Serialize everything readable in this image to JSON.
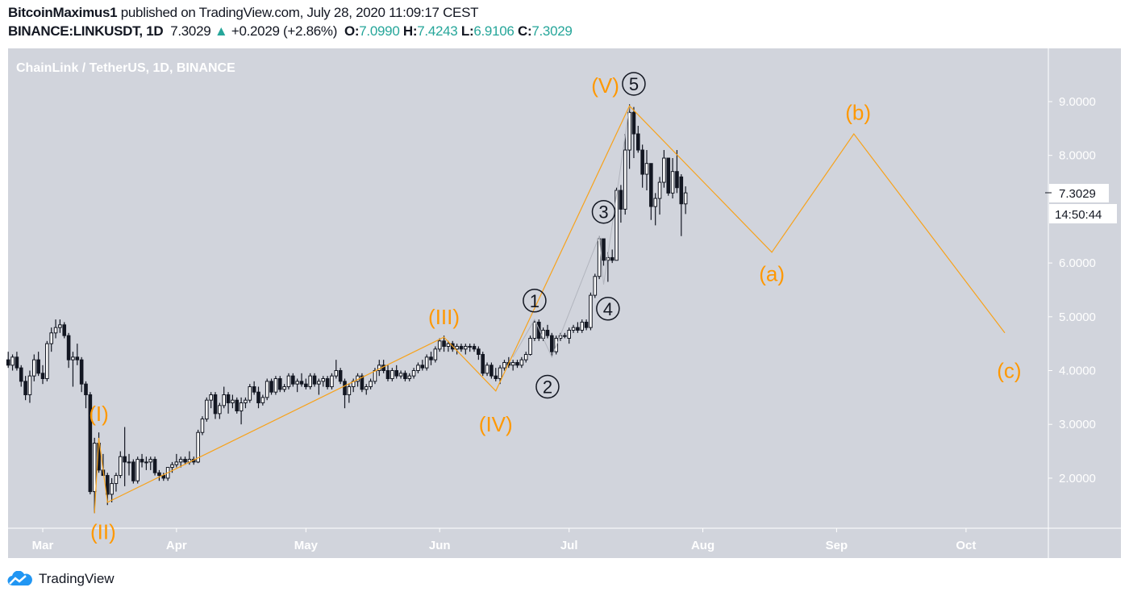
{
  "header": {
    "author": "BitcoinMaximus1",
    "published": "published on TradingView.com, July 28, 2020 11:09:17 CEST",
    "symbol": "BINANCE:LINKUSDT, 1D",
    "last": "7.3029",
    "change": "+0.2029 (+2.86%)",
    "o_label": "O:",
    "o": "7.0990",
    "h_label": "H:",
    "h": "7.4243",
    "l_label": "L:",
    "l": "6.9106",
    "c_label": "C:",
    "c": "7.3029"
  },
  "footer": {
    "brand": "TradingView",
    "icon": "tradingview-cloud-icon"
  },
  "colors": {
    "background": "#d1d4dc",
    "up_body": "#ffffff",
    "down_body": "#131722",
    "wick": "#131722",
    "wave": "#f7a21b",
    "wave_label": "#ff9800",
    "subwave": "#b2b5be",
    "change_up": "#26a69a"
  },
  "chart_data": {
    "type": "candlestick",
    "title": "ChainLink / TetherUS, 1D, BINANCE",
    "x_start": "2020-02-22",
    "interval": "1D",
    "ohlc": [
      [
        4.2,
        4.35,
        4.05,
        4.1
      ],
      [
        4.1,
        4.3,
        4.0,
        4.25
      ],
      [
        4.25,
        4.35,
        4.0,
        4.05
      ],
      [
        4.05,
        4.1,
        3.7,
        3.8
      ],
      [
        3.8,
        3.9,
        3.45,
        3.55
      ],
      [
        3.55,
        4.0,
        3.4,
        3.9
      ],
      [
        3.9,
        4.3,
        3.8,
        4.2
      ],
      [
        4.2,
        4.35,
        3.9,
        3.95
      ],
      [
        3.95,
        4.1,
        3.75,
        3.85
      ],
      [
        3.85,
        4.55,
        3.8,
        4.5
      ],
      [
        4.5,
        4.8,
        4.35,
        4.7
      ],
      [
        4.7,
        4.95,
        4.6,
        4.8
      ],
      [
        4.8,
        4.95,
        4.7,
        4.85
      ],
      [
        4.85,
        4.9,
        4.6,
        4.65
      ],
      [
        4.65,
        4.7,
        4.05,
        4.2
      ],
      [
        4.2,
        4.35,
        3.7,
        4.25
      ],
      [
        4.25,
        4.5,
        4.1,
        4.2
      ],
      [
        4.2,
        4.25,
        3.6,
        3.75
      ],
      [
        3.75,
        3.8,
        3.3,
        3.55
      ],
      [
        3.55,
        3.6,
        1.7,
        1.75
      ],
      [
        1.75,
        2.75,
        1.35,
        2.65
      ],
      [
        2.65,
        2.85,
        2.1,
        2.15
      ],
      [
        2.15,
        2.45,
        2.05,
        2.05
      ],
      [
        2.05,
        2.1,
        1.5,
        1.7
      ],
      [
        1.7,
        2.0,
        1.55,
        1.9
      ],
      [
        1.9,
        2.1,
        1.75,
        2.05
      ],
      [
        2.05,
        2.5,
        2.0,
        2.4
      ],
      [
        2.4,
        2.95,
        1.85,
        2.3
      ],
      [
        2.3,
        2.45,
        2.05,
        2.3
      ],
      [
        2.3,
        2.35,
        1.9,
        1.95
      ],
      [
        1.95,
        2.4,
        1.9,
        2.35
      ],
      [
        2.35,
        2.45,
        2.2,
        2.3
      ],
      [
        2.3,
        2.4,
        2.15,
        2.3
      ],
      [
        2.3,
        2.4,
        2.15,
        2.35
      ],
      [
        2.35,
        2.4,
        2.05,
        2.1
      ],
      [
        2.1,
        2.15,
        1.95,
        2.05
      ],
      [
        2.05,
        2.1,
        1.95,
        2.0
      ],
      [
        2.0,
        2.2,
        1.95,
        2.2
      ],
      [
        2.2,
        2.3,
        2.1,
        2.25
      ],
      [
        2.25,
        2.45,
        2.2,
        2.3
      ],
      [
        2.3,
        2.4,
        2.2,
        2.35
      ],
      [
        2.35,
        2.4,
        2.25,
        2.3
      ],
      [
        2.3,
        2.5,
        2.25,
        2.35
      ],
      [
        2.35,
        2.4,
        2.25,
        2.3
      ],
      [
        2.3,
        2.9,
        2.28,
        2.85
      ],
      [
        2.85,
        3.15,
        2.8,
        3.1
      ],
      [
        3.1,
        3.5,
        3.05,
        3.45
      ],
      [
        3.45,
        3.6,
        3.3,
        3.55
      ],
      [
        3.55,
        3.6,
        3.1,
        3.2
      ],
      [
        3.2,
        3.4,
        3.1,
        3.35
      ],
      [
        3.35,
        3.7,
        3.3,
        3.55
      ],
      [
        3.55,
        3.6,
        3.2,
        3.4
      ],
      [
        3.4,
        3.55,
        3.3,
        3.45
      ],
      [
        3.45,
        3.5,
        3.2,
        3.25
      ],
      [
        3.25,
        3.5,
        3.0,
        3.4
      ],
      [
        3.4,
        3.5,
        3.3,
        3.45
      ],
      [
        3.45,
        3.75,
        3.4,
        3.7
      ],
      [
        3.7,
        3.8,
        3.55,
        3.6
      ],
      [
        3.6,
        3.7,
        3.3,
        3.4
      ],
      [
        3.4,
        3.55,
        3.35,
        3.5
      ],
      [
        3.5,
        3.85,
        3.45,
        3.8
      ],
      [
        3.8,
        3.85,
        3.55,
        3.6
      ],
      [
        3.6,
        3.9,
        3.55,
        3.85
      ],
      [
        3.85,
        3.9,
        3.6,
        3.65
      ],
      [
        3.65,
        3.75,
        3.6,
        3.7
      ],
      [
        3.7,
        3.95,
        3.65,
        3.9
      ],
      [
        3.9,
        3.95,
        3.7,
        3.75
      ],
      [
        3.75,
        3.85,
        3.6,
        3.8
      ],
      [
        3.8,
        3.95,
        3.7,
        3.75
      ],
      [
        3.75,
        3.85,
        3.65,
        3.7
      ],
      [
        3.7,
        3.95,
        3.65,
        3.9
      ],
      [
        3.9,
        3.95,
        3.7,
        3.75
      ],
      [
        3.75,
        3.85,
        3.55,
        3.8
      ],
      [
        3.8,
        3.9,
        3.7,
        3.85
      ],
      [
        3.85,
        3.9,
        3.65,
        3.7
      ],
      [
        3.7,
        3.95,
        3.65,
        3.9
      ],
      [
        3.9,
        4.2,
        3.85,
        4.0
      ],
      [
        4.0,
        4.05,
        3.75,
        3.8
      ],
      [
        3.8,
        3.85,
        3.3,
        3.55
      ],
      [
        3.55,
        3.75,
        3.4,
        3.7
      ],
      [
        3.7,
        3.85,
        3.6,
        3.8
      ],
      [
        3.8,
        3.95,
        3.7,
        3.9
      ],
      [
        3.9,
        3.95,
        3.6,
        3.65
      ],
      [
        3.65,
        3.75,
        3.55,
        3.7
      ],
      [
        3.7,
        3.85,
        3.65,
        3.8
      ],
      [
        3.8,
        4.05,
        3.75,
        4.0
      ],
      [
        4.0,
        4.2,
        3.9,
        4.1
      ],
      [
        4.1,
        4.2,
        3.95,
        4.0
      ],
      [
        4.0,
        4.1,
        3.8,
        3.85
      ],
      [
        3.85,
        4.05,
        3.8,
        4.0
      ],
      [
        4.0,
        4.1,
        3.85,
        3.9
      ],
      [
        3.9,
        4.0,
        3.85,
        3.95
      ],
      [
        3.95,
        4.0,
        3.8,
        3.85
      ],
      [
        3.85,
        3.95,
        3.8,
        3.9
      ],
      [
        3.9,
        4.05,
        3.85,
        4.0
      ],
      [
        4.0,
        4.15,
        3.95,
        4.1
      ],
      [
        4.1,
        4.2,
        4.0,
        4.05
      ],
      [
        4.05,
        4.3,
        4.0,
        4.25
      ],
      [
        4.25,
        4.35,
        4.1,
        4.2
      ],
      [
        4.2,
        4.45,
        4.15,
        4.4
      ],
      [
        4.4,
        4.6,
        4.35,
        4.55
      ],
      [
        4.55,
        4.65,
        4.35,
        4.45
      ],
      [
        4.45,
        4.55,
        4.35,
        4.5
      ],
      [
        4.5,
        4.55,
        4.35,
        4.4
      ],
      [
        4.4,
        4.5,
        4.3,
        4.45
      ],
      [
        4.45,
        4.5,
        4.35,
        4.4
      ],
      [
        4.4,
        4.5,
        4.3,
        4.45
      ],
      [
        4.45,
        4.5,
        4.35,
        4.45
      ],
      [
        4.45,
        4.5,
        4.35,
        4.4
      ],
      [
        4.4,
        4.45,
        4.2,
        4.3
      ],
      [
        4.3,
        4.35,
        3.9,
        3.95
      ],
      [
        3.95,
        4.15,
        3.9,
        4.1
      ],
      [
        4.1,
        4.15,
        3.85,
        3.9
      ],
      [
        3.9,
        4.05,
        3.8,
        3.85
      ],
      [
        3.85,
        4.1,
        3.75,
        4.05
      ],
      [
        4.05,
        4.2,
        4.0,
        4.15
      ],
      [
        4.15,
        4.25,
        4.05,
        4.1
      ],
      [
        4.1,
        4.2,
        4.0,
        4.15
      ],
      [
        4.15,
        4.2,
        4.05,
        4.1
      ],
      [
        4.1,
        4.25,
        4.05,
        4.2
      ],
      [
        4.2,
        4.35,
        4.15,
        4.3
      ],
      [
        4.3,
        4.65,
        4.28,
        4.6
      ],
      [
        4.6,
        4.95,
        4.55,
        4.9
      ],
      [
        4.9,
        4.95,
        4.55,
        4.6
      ],
      [
        4.6,
        4.8,
        4.55,
        4.75
      ],
      [
        4.75,
        4.85,
        4.6,
        4.65
      ],
      [
        4.65,
        4.7,
        4.25,
        4.35
      ],
      [
        4.35,
        4.65,
        4.3,
        4.6
      ],
      [
        4.6,
        4.7,
        4.55,
        4.65
      ],
      [
        4.65,
        4.7,
        4.6,
        4.65
      ],
      [
        4.6,
        4.8,
        4.5,
        4.75
      ],
      [
        4.75,
        4.85,
        4.7,
        4.8
      ],
      [
        4.8,
        4.9,
        4.7,
        4.75
      ],
      [
        4.75,
        4.95,
        4.7,
        4.9
      ],
      [
        4.9,
        4.95,
        4.75,
        4.8
      ],
      [
        4.8,
        5.45,
        4.75,
        5.4
      ],
      [
        5.4,
        5.8,
        5.35,
        5.75
      ],
      [
        5.75,
        6.5,
        5.7,
        6.45
      ],
      [
        6.45,
        6.45,
        5.95,
        6.05
      ],
      [
        6.05,
        6.2,
        5.65,
        6.1
      ],
      [
        6.1,
        6.25,
        6.0,
        6.05
      ],
      [
        6.05,
        7.4,
        6.05,
        7.35
      ],
      [
        7.35,
        7.45,
        6.75,
        7.0
      ],
      [
        7.0,
        8.4,
        6.9,
        8.1
      ],
      [
        8.1,
        8.95,
        7.75,
        8.8
      ],
      [
        8.8,
        8.9,
        7.95,
        8.4
      ],
      [
        8.4,
        8.55,
        8.05,
        8.1
      ],
      [
        8.1,
        8.2,
        7.4,
        7.65
      ],
      [
        7.65,
        8.1,
        7.35,
        7.85
      ],
      [
        7.85,
        7.8,
        6.8,
        7.05
      ],
      [
        7.05,
        7.3,
        6.7,
        7.2
      ],
      [
        7.2,
        7.6,
        6.9,
        7.5
      ],
      [
        7.5,
        8.1,
        7.4,
        7.95
      ],
      [
        7.95,
        7.95,
        7.25,
        7.3
      ],
      [
        7.3,
        7.95,
        7.2,
        7.7
      ],
      [
        7.7,
        8.1,
        7.3,
        7.4
      ],
      [
        7.6,
        7.65,
        6.5,
        7.1
      ],
      [
        7.099,
        7.4243,
        6.9106,
        7.3029
      ]
    ],
    "ylim": [
      1.05,
      9.95
    ],
    "xlim": [
      "2020-02-22",
      "2020-10-27"
    ],
    "y_ticks": [
      "9.0000",
      "8.0000",
      "6.0000",
      "5.0000",
      "4.0000",
      "3.0000",
      "2.0000"
    ],
    "x_ticks": [
      {
        "date": "2020-03-01",
        "label": "Mar"
      },
      {
        "date": "2020-04-01",
        "label": "Apr"
      },
      {
        "date": "2020-05-01",
        "label": "May"
      },
      {
        "date": "2020-06-01",
        "label": "Jun"
      },
      {
        "date": "2020-07-01",
        "label": "Jul"
      },
      {
        "date": "2020-08-01",
        "label": "Aug"
      },
      {
        "date": "2020-09-01",
        "label": "Sep"
      },
      {
        "date": "2020-10-01",
        "label": "Oct"
      }
    ],
    "last_price_label": "7.3029",
    "countdown_label": "14:50:44",
    "wave_path": [
      [
        "2020-03-13",
        1.35
      ],
      [
        "2020-03-14",
        2.75
      ],
      [
        "2020-03-16",
        1.55
      ],
      [
        "2020-06-02",
        4.62
      ],
      [
        "2020-06-14",
        3.62
      ],
      [
        "2020-07-15",
        8.92
      ],
      [
        "2020-08-17",
        6.2
      ],
      [
        "2020-09-05",
        8.4
      ],
      [
        "2020-10-10",
        4.7
      ]
    ],
    "subwave_path": [
      [
        "2020-06-18",
        4.25
      ],
      [
        "2020-06-23",
        4.95
      ],
      [
        "2020-06-27",
        4.25
      ],
      [
        "2020-07-08",
        6.5
      ],
      [
        "2020-07-09",
        5.6
      ],
      [
        "2020-07-15",
        8.92
      ]
    ],
    "wave_labels": [
      {
        "text": "(I)",
        "date": "2020-03-14",
        "price": 3.2
      },
      {
        "text": "(II)",
        "date": "2020-03-15",
        "price": 1.0
      },
      {
        "text": "(III)",
        "date": "2020-06-02",
        "price": 5.0
      },
      {
        "text": "(IV)",
        "date": "2020-06-14",
        "price": 3.0
      },
      {
        "text": "(V)",
        "date": "2020-07-15",
        "price": 9.3
      },
      {
        "text": "(a)",
        "date": "2020-08-17",
        "price": 5.8
      },
      {
        "text": "(b)",
        "date": "2020-09-06",
        "price": 8.8
      },
      {
        "text": "(c)",
        "date": "2020-10-11",
        "price": 4.0
      }
    ],
    "subwave_labels": [
      {
        "text": "1",
        "date": "2020-06-23",
        "price": 5.3
      },
      {
        "text": "2",
        "date": "2020-06-26",
        "price": 3.7
      },
      {
        "text": "3",
        "date": "2020-07-09",
        "price": 6.95
      },
      {
        "text": "4",
        "date": "2020-07-10",
        "price": 5.15
      },
      {
        "text": "5",
        "date": "2020-07-16",
        "price": 9.33
      }
    ]
  }
}
